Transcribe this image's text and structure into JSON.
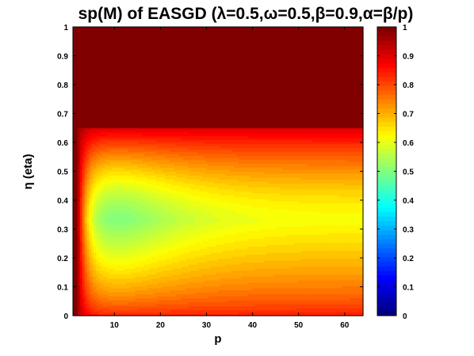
{
  "chart_data": {
    "type": "heatmap",
    "title": "sp(M) of EASGD (λ=0.5,ω=0.5,β=0.9,α=β/p)",
    "xlabel": "p",
    "ylabel": "η (eta)",
    "xlim": [
      1,
      64
    ],
    "ylim": [
      0,
      1
    ],
    "x_ticks": [
      10,
      20,
      30,
      40,
      50,
      60
    ],
    "y_ticks": [
      0,
      0.1,
      0.2,
      0.3,
      0.4,
      0.5,
      0.6,
      0.7,
      0.8,
      0.9,
      1
    ],
    "colorbar": {
      "colormap": "jet",
      "range": [
        0,
        1
      ],
      "ticks": [
        0,
        0.1,
        0.2,
        0.3,
        0.4,
        0.5,
        0.6,
        0.7,
        0.8,
        0.9,
        1
      ]
    },
    "field_features": {
      "saturated_region": "eta above about 0.65 for p >= 2, and whole eta range at p near 1, value 1",
      "minimum": {
        "p": 8,
        "eta": 0.35,
        "value": 0.5
      },
      "ridge_eta": 0.33,
      "large_p_plateau": 0.62,
      "edge_values": {
        "eta_0": 0.85,
        "eta_0.65": 0.9
      }
    }
  }
}
